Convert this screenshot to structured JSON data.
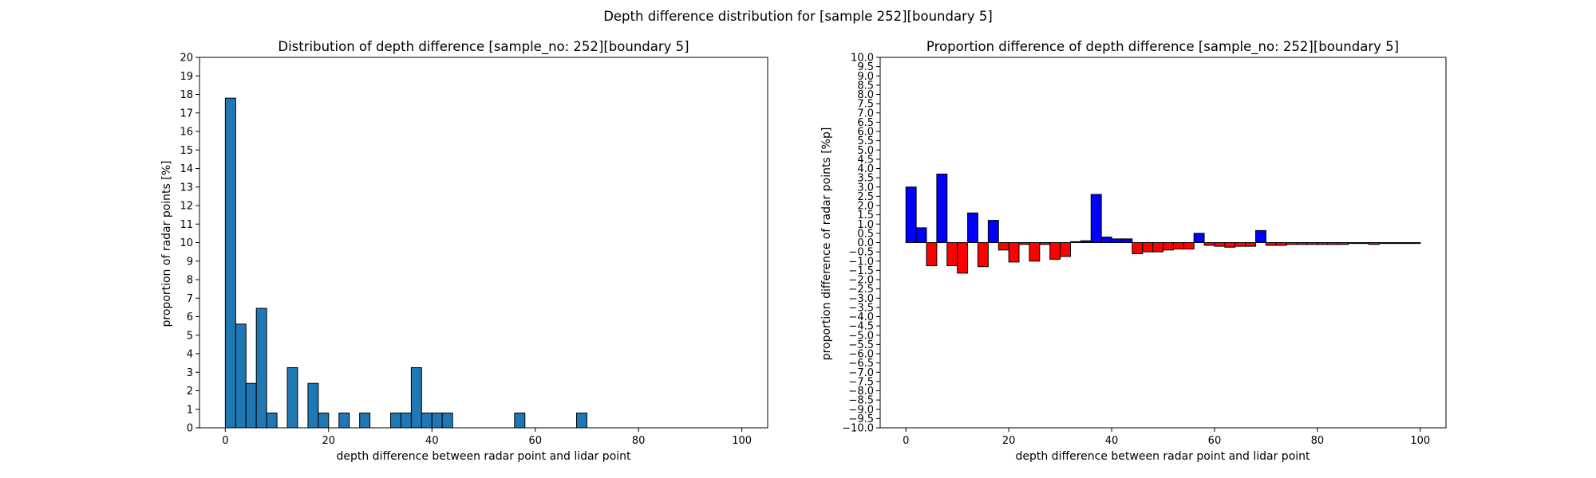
{
  "figure_title": "Depth difference distribution for [sample 252][boundary 5]",
  "chart_data": [
    {
      "type": "bar",
      "title": "Distribution of depth difference [sample_no: 252][boundary 5]",
      "xlabel": "depth difference between radar point and lidar point",
      "ylabel": "proportion of radar points [%]",
      "xlim": [
        -5,
        105
      ],
      "ylim": [
        0,
        20
      ],
      "xticks": [
        0,
        20,
        40,
        60,
        80,
        100
      ],
      "yticks": [
        0,
        1,
        2,
        3,
        4,
        5,
        6,
        7,
        8,
        9,
        10,
        11,
        12,
        13,
        14,
        15,
        16,
        17,
        18,
        19,
        20
      ],
      "bin_width": 2,
      "bar_color": "#1f77b4",
      "edge_color": "#000000",
      "x": [
        0,
        2,
        4,
        6,
        8,
        10,
        12,
        14,
        16,
        18,
        20,
        22,
        24,
        26,
        28,
        30,
        32,
        34,
        36,
        38,
        40,
        42,
        44,
        46,
        48,
        50,
        52,
        54,
        56,
        58,
        60,
        62,
        64,
        66,
        68,
        70,
        72,
        74,
        76,
        78,
        80,
        82,
        84,
        86,
        88,
        90,
        92,
        94,
        96,
        98
      ],
      "values": [
        17.8,
        5.6,
        2.4,
        6.45,
        0.8,
        0,
        3.25,
        0,
        2.4,
        0.8,
        0,
        0.8,
        0,
        0.8,
        0,
        0,
        0.8,
        0.8,
        3.25,
        0.8,
        0.8,
        0.8,
        0,
        0,
        0,
        0,
        0,
        0,
        0.8,
        0,
        0,
        0,
        0,
        0,
        0.8,
        0,
        0,
        0,
        0,
        0,
        0,
        0,
        0,
        0,
        0,
        0,
        0,
        0,
        0,
        0
      ]
    },
    {
      "type": "bar",
      "title": "Proportion difference of depth difference [sample_no: 252][boundary 5]",
      "xlabel": "depth difference between radar point and lidar point",
      "ylabel": "proportion difference of radar points [%p]",
      "xlim": [
        -5,
        105
      ],
      "ylim": [
        -10,
        10
      ],
      "xticks": [
        0,
        20,
        40,
        60,
        80,
        100
      ],
      "yticks": [
        -10.0,
        -9.5,
        -9.0,
        -8.5,
        -8.0,
        -7.5,
        -7.0,
        -6.5,
        -6.0,
        -5.5,
        -5.0,
        -4.5,
        -4.0,
        -3.5,
        -3.0,
        -2.5,
        -2.0,
        -1.5,
        -1.0,
        -0.5,
        0.0,
        0.5,
        1.0,
        1.5,
        2.0,
        2.5,
        3.0,
        3.5,
        4.0,
        4.5,
        5.0,
        5.5,
        6.0,
        6.5,
        7.0,
        7.5,
        8.0,
        8.5,
        9.0,
        9.5,
        10.0
      ],
      "bin_width": 2,
      "positive_color": "#0000ff",
      "negative_color": "#ff0000",
      "edge_color": "#000000",
      "x": [
        0,
        2,
        4,
        6,
        8,
        10,
        12,
        14,
        16,
        18,
        20,
        22,
        24,
        26,
        28,
        30,
        32,
        34,
        36,
        38,
        40,
        42,
        44,
        46,
        48,
        50,
        52,
        54,
        56,
        58,
        60,
        62,
        64,
        66,
        68,
        70,
        72,
        74,
        76,
        78,
        80,
        82,
        84,
        86,
        88,
        90,
        92,
        94,
        96,
        98
      ],
      "values": [
        3.0,
        0.8,
        -1.25,
        3.7,
        -1.25,
        -1.65,
        1.6,
        -1.3,
        1.2,
        -0.4,
        -1.05,
        -0.1,
        -1.0,
        -0.1,
        -0.9,
        -0.75,
        0.05,
        0.1,
        2.6,
        0.3,
        0.2,
        0.2,
        -0.6,
        -0.5,
        -0.5,
        -0.4,
        -0.35,
        -0.35,
        0.5,
        -0.15,
        -0.2,
        -0.25,
        -0.2,
        -0.2,
        0.65,
        -0.15,
        -0.15,
        -0.1,
        -0.1,
        -0.1,
        -0.1,
        -0.1,
        -0.1,
        -0.05,
        -0.05,
        -0.1,
        -0.05,
        -0.05,
        -0.05,
        -0.05
      ]
    }
  ]
}
